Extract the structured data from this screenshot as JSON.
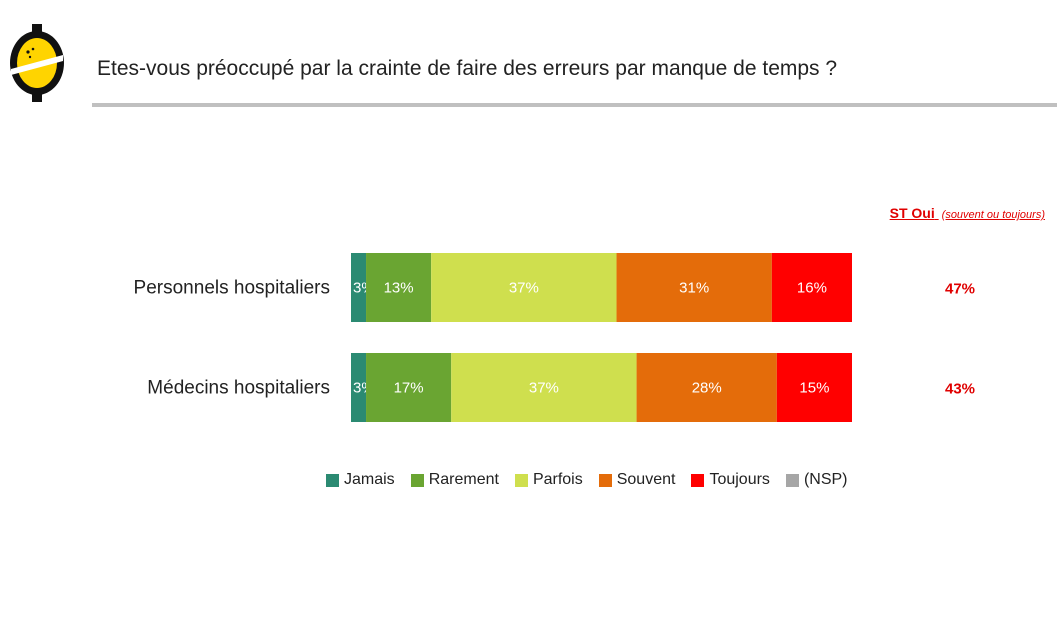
{
  "header": {
    "title": "Etes-vous préoccupé par la crainte de faire des erreurs par manque de temps ?"
  },
  "st_column": {
    "label": "ST Oui",
    "sublabel": "(souvent ou toujours)"
  },
  "colors": {
    "Jamais": "#2b8a72",
    "Rarement": "#6aa532",
    "Parfois": "#cfdf4e",
    "Souvent": "#e46c0a",
    "Toujours": "#ff0000",
    "(NSP)": "#a6a6a6",
    "st_text": "#e00000"
  },
  "chart_data": {
    "type": "bar",
    "orientation": "horizontal",
    "stacked": true,
    "title": "Etes-vous préoccupé par la crainte de faire des erreurs par manque de temps ?",
    "categories": [
      "Personnels hospitaliers",
      "Médecins hospitaliers"
    ],
    "series": [
      {
        "name": "Jamais",
        "values": [
          3,
          3
        ],
        "labels": [
          "3%",
          "3%"
        ]
      },
      {
        "name": "Rarement",
        "values": [
          13,
          17
        ],
        "labels": [
          "13%",
          "17%"
        ]
      },
      {
        "name": "Parfois",
        "values": [
          37,
          37
        ],
        "labels": [
          "37%",
          "37%"
        ]
      },
      {
        "name": "Souvent",
        "values": [
          31,
          28
        ],
        "labels": [
          "31%",
          "28%"
        ]
      },
      {
        "name": "Toujours",
        "values": [
          16,
          15
        ],
        "labels": [
          "16%",
          "15%"
        ]
      },
      {
        "name": "(NSP)",
        "values": [
          0,
          0
        ],
        "labels": [
          "",
          ""
        ]
      }
    ],
    "st_oui": [
      "47%",
      "43%"
    ],
    "legend_position": "bottom",
    "xlim": [
      0,
      100
    ]
  },
  "legend": {
    "items": [
      "Jamais",
      "Rarement",
      "Parfois",
      "Souvent",
      "Toujours",
      "(NSP)"
    ]
  }
}
